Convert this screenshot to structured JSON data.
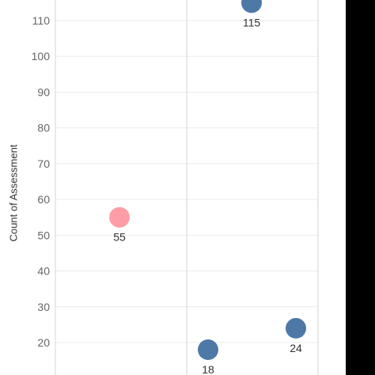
{
  "chart_data": {
    "type": "scatter",
    "title": "",
    "xlabel": "",
    "ylabel": "Count of Assessment",
    "ylim": [
      15,
      115
    ],
    "yticks": [
      20,
      30,
      40,
      50,
      60,
      70,
      80,
      90,
      100,
      110
    ],
    "grid": true,
    "legend": "none",
    "series": [
      {
        "color": "#FF9DA7",
        "points": [
          {
            "value": 55,
            "label": "55"
          }
        ]
      },
      {
        "color": "#4E79A7",
        "points": [
          {
            "value": 115,
            "label": "115"
          },
          {
            "value": 18,
            "label": "18"
          },
          {
            "value": 24,
            "label": "24"
          }
        ]
      }
    ]
  },
  "colors": {
    "pink_mark": "#FF9DA7",
    "blue_mark": "#4E79A7",
    "gridline": "#EBEBEB",
    "panel_divider": "#D4D4D4",
    "tick_text": "#666666",
    "label_text": "#333333"
  }
}
